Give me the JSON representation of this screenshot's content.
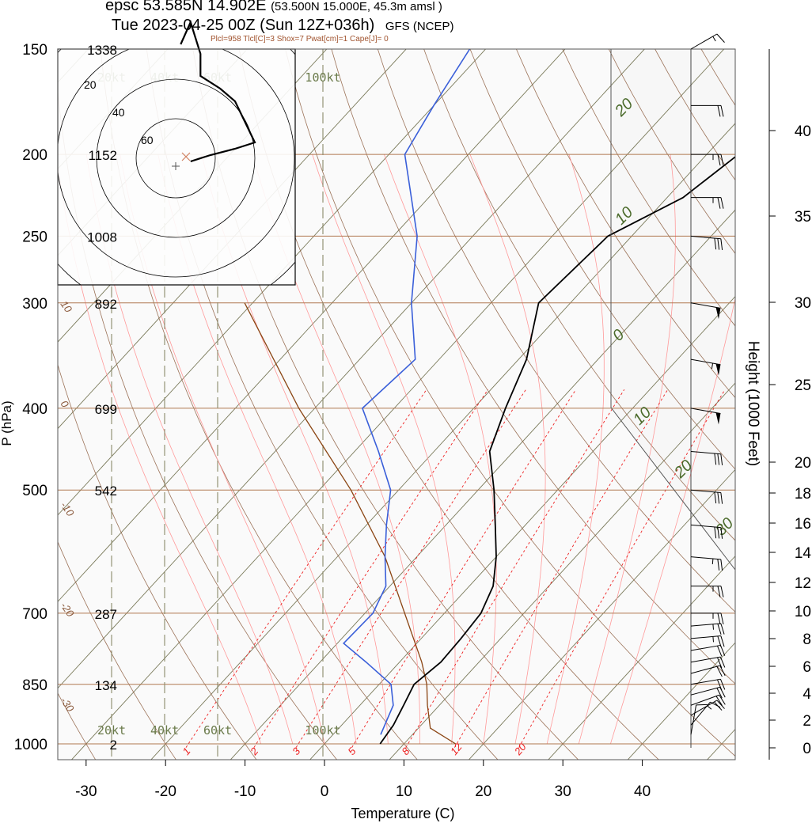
{
  "header": {
    "station": "epsc 53.585N 14.902E",
    "gridpoint": "(53.500N 15.000E,  45.3m amsl )",
    "valid": "Tue 2023-04-25 00Z (Sun 12Z+036h)",
    "model": "GFS (NCEP)",
    "indices": "Plcl=958 Tlcl[C]=3 Shox=7 Pwat[cm]=1 Cape[J]= 0"
  },
  "colors": {
    "temperature": "#000000",
    "dewpoint": "#3a5fd9",
    "parcel": "#8b4513",
    "isobar": "#b07850",
    "isotherm": "#7a7a5a",
    "dry_adiabat": "#8b5a3c",
    "moist_adiabat": "#ff9a9a",
    "mixing_ratio": "#ee2020",
    "terrain_shading": "#d9dbd2",
    "label_green": "#4a6a2a"
  },
  "chart_data": {
    "type": "line",
    "diagram": "skew-T log-P",
    "xlabel": "Temperature (C)",
    "ylabel": "P (hPa)",
    "y2label": "Height (1000 Feet)",
    "x_ticks": [
      "-30",
      "-20",
      "-10",
      "0",
      "10",
      "20",
      "30",
      "40"
    ],
    "pressure_ticks": [
      "150",
      "200",
      "250",
      "300",
      "400",
      "500",
      "700",
      "850",
      "1000"
    ],
    "geopotential_labels": [
      {
        "p": 150,
        "label": "1338"
      },
      {
        "p": 200,
        "label": "1152"
      },
      {
        "p": 250,
        "label": "1008"
      },
      {
        "p": 300,
        "label": "892"
      },
      {
        "p": 400,
        "label": "699"
      },
      {
        "p": 500,
        "label": "542"
      },
      {
        "p": 700,
        "label": "287"
      },
      {
        "p": 850,
        "label": "134"
      },
      {
        "p": 1000,
        "label": "2"
      }
    ],
    "height_ticks": [
      "0",
      "2",
      "4",
      "6",
      "8",
      "10",
      "12",
      "14",
      "16",
      "18",
      "20",
      "25",
      "30",
      "35",
      "40"
    ],
    "xlim": [
      -34,
      46
    ],
    "plim": [
      1000,
      150
    ],
    "temperature": [
      [
        1000,
        7
      ],
      [
        950,
        6.5
      ],
      [
        900,
        5.5
      ],
      [
        850,
        4.4
      ],
      [
        800,
        5.2
      ],
      [
        750,
        5
      ],
      [
        700,
        4.6
      ],
      [
        650,
        3
      ],
      [
        600,
        0
      ],
      [
        550,
        -3.8
      ],
      [
        500,
        -8
      ],
      [
        450,
        -13
      ],
      [
        400,
        -16
      ],
      [
        350,
        -19
      ],
      [
        300,
        -24
      ],
      [
        250,
        -23
      ],
      [
        225,
        -18
      ],
      [
        200,
        -16
      ],
      [
        175,
        -19
      ],
      [
        150,
        -21
      ]
    ],
    "dewpoint": [
      [
        975,
        6
      ],
      [
        900,
        4.2
      ],
      [
        850,
        1.5
      ],
      [
        800,
        -4.2
      ],
      [
        760,
        -9.2
      ],
      [
        700,
        -9
      ],
      [
        650,
        -10.5
      ],
      [
        600,
        -14
      ],
      [
        550,
        -17.5
      ],
      [
        500,
        -21
      ],
      [
        450,
        -27
      ],
      [
        400,
        -34
      ],
      [
        350,
        -33
      ],
      [
        300,
        -40
      ],
      [
        250,
        -47
      ],
      [
        200,
        -58
      ],
      [
        175,
        -60
      ],
      [
        150,
        -62
      ]
    ],
    "parcel": [
      [
        1000,
        16.5
      ],
      [
        958,
        11.5
      ],
      [
        900,
        8.5
      ],
      [
        850,
        6
      ],
      [
        800,
        2.8
      ],
      [
        700,
        -5
      ],
      [
        600,
        -14
      ],
      [
        500,
        -26
      ],
      [
        400,
        -42
      ],
      [
        300,
        -61
      ]
    ],
    "isotherm_labels": [
      "20",
      "10",
      "0",
      "10",
      "20",
      "30"
    ],
    "dry_adiabat_labels": [
      "10",
      "0",
      "-10",
      "-20",
      "-30"
    ],
    "mixing_ratio_labels": [
      "1",
      "2",
      "3",
      "5",
      "8",
      "12",
      "20"
    ],
    "mixing_ratio_values": [
      1,
      2,
      3,
      5,
      8,
      12,
      20
    ],
    "speed_ring_labels": [
      "20kt",
      "40kt",
      "60kt",
      "100kt"
    ],
    "hodograph": {
      "ring_labels": [
        "20",
        "40",
        "60"
      ],
      "points": [
        [
          1000,
          3,
          1
        ],
        [
          850,
          7,
          -1
        ],
        [
          700,
          12,
          -3
        ],
        [
          600,
          16,
          -5
        ],
        [
          500,
          12,
          -18
        ],
        [
          400,
          9,
          -22
        ],
        [
          300,
          5,
          -26
        ],
        [
          250,
          5,
          -33
        ],
        [
          200,
          3,
          -43
        ],
        [
          150,
          1,
          -36
        ]
      ]
    },
    "wind_barbs": [
      {
        "p": 975,
        "dir": 190,
        "spd": 10
      },
      {
        "p": 950,
        "dir": 220,
        "spd": 15
      },
      {
        "p": 925,
        "dir": 240,
        "spd": 20
      },
      {
        "p": 900,
        "dir": 250,
        "spd": 20
      },
      {
        "p": 875,
        "dir": 255,
        "spd": 20
      },
      {
        "p": 850,
        "dir": 260,
        "spd": 20
      },
      {
        "p": 825,
        "dir": 255,
        "spd": 20
      },
      {
        "p": 800,
        "dir": 260,
        "spd": 20
      },
      {
        "p": 775,
        "dir": 260,
        "spd": 20
      },
      {
        "p": 750,
        "dir": 265,
        "spd": 25
      },
      {
        "p": 725,
        "dir": 265,
        "spd": 25
      },
      {
        "p": 700,
        "dir": 270,
        "spd": 25
      },
      {
        "p": 650,
        "dir": 270,
        "spd": 25
      },
      {
        "p": 600,
        "dir": 275,
        "spd": 25
      },
      {
        "p": 550,
        "dir": 275,
        "spd": 30
      },
      {
        "p": 500,
        "dir": 275,
        "spd": 30
      },
      {
        "p": 450,
        "dir": 275,
        "spd": 30
      },
      {
        "p": 400,
        "dir": 280,
        "spd": 50
      },
      {
        "p": 350,
        "dir": 280,
        "spd": 55
      },
      {
        "p": 300,
        "dir": 280,
        "spd": 50
      },
      {
        "p": 250,
        "dir": 275,
        "spd": 30
      },
      {
        "p": 225,
        "dir": 270,
        "spd": 25
      },
      {
        "p": 200,
        "dir": 270,
        "spd": 25
      },
      {
        "p": 175,
        "dir": 270,
        "spd": 20
      },
      {
        "p": 150,
        "dir": 240,
        "spd": 15
      }
    ]
  }
}
